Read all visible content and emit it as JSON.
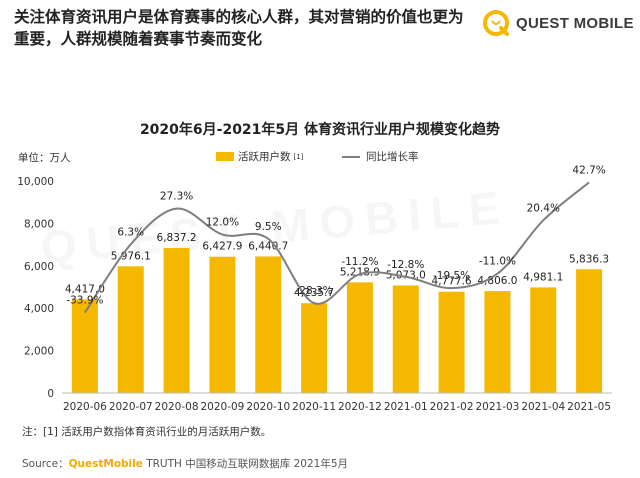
{
  "headline": "关注体育资讯用户是体育赛事的核心人群，其对营销的价值也更为重要，人群规模随着赛事节奏而变化",
  "logo": {
    "text": "QUEST MOBILE",
    "color": "#F5B800"
  },
  "watermark": "QUEST MOBILE",
  "unit": "单位：万人",
  "note": "注：[1] 活跃用户数指体育资讯行业的月活跃用户数。",
  "source": {
    "prefix": "Source：",
    "brand": "QuestMobile",
    "rest": " TRUTH 中国移动互联网数据库 2021年5月"
  },
  "colors": {
    "bar": "#F5B800",
    "line": "#7f7f7f"
  },
  "chart_data": {
    "type": "bar",
    "title": "2020年6月-2021年5月 体育资讯行业用户规模变化趋势",
    "categories": [
      "2020-06",
      "2020-07",
      "2020-08",
      "2020-09",
      "2020-10",
      "2020-11",
      "2020-12",
      "2021-01",
      "2021-02",
      "2021-03",
      "2021-04",
      "2021-05"
    ],
    "series": [
      {
        "name": "活跃用户数",
        "legend_mark": "[1]",
        "values": [
          4417.0,
          5976.1,
          6837.2,
          6427.9,
          6440.7,
          4235.7,
          5218.9,
          5073.0,
          4777.6,
          4806.0,
          4981.1,
          5836.3
        ],
        "labels": [
          "4,417.0",
          "5,976.1",
          "6,837.2",
          "6,427.9",
          "6,440.7",
          "4,235.7",
          "5,218.9",
          "5,073.0",
          "4,777.6",
          "4,806.0",
          "4,981.1",
          "5,836.3"
        ]
      },
      {
        "name": "同比增长率",
        "type": "line",
        "values": [
          -33.9,
          6.3,
          27.3,
          12.0,
          9.5,
          -28.3,
          -11.2,
          -12.8,
          -19.5,
          -11.0,
          20.4,
          42.7
        ],
        "labels": [
          "-33.9%",
          "6.3%",
          "27.3%",
          "12.0%",
          "9.5%",
          "-28.3%",
          "-11.2%",
          "-12.8%",
          "-19.5%",
          "-11.0%",
          "20.4%",
          "42.7%"
        ]
      }
    ],
    "ylim": [
      0,
      10000
    ],
    "yticks": [
      0,
      2000,
      4000,
      6000,
      8000,
      10000
    ],
    "ytick_labels": [
      "0",
      "2,000",
      "4,000",
      "6,000",
      "8,000",
      "10,000"
    ],
    "legend_position": "top",
    "grid": false
  }
}
